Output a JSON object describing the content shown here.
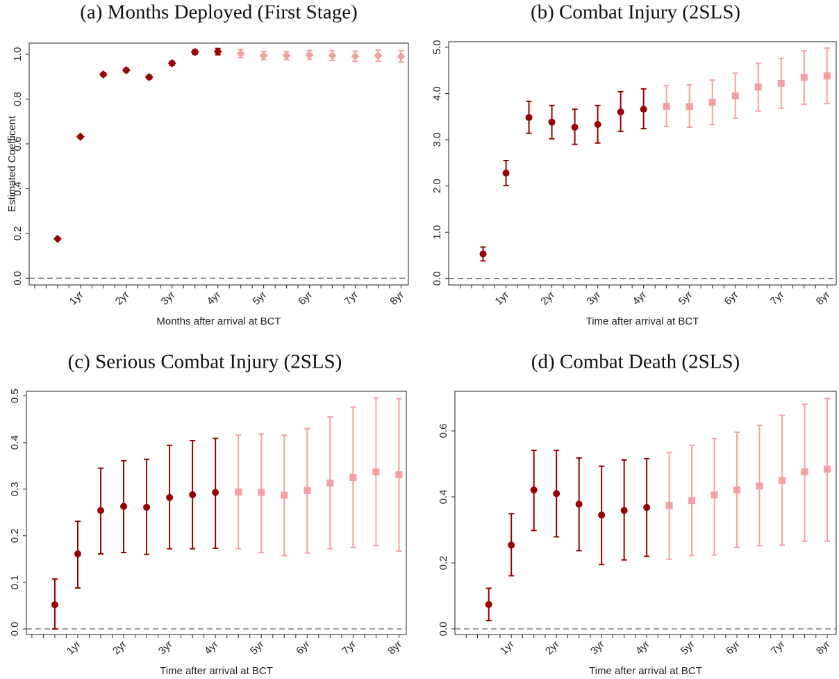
{
  "chart_data": [
    {
      "type": "errorbar",
      "title": "(a) Months Deployed (First Stage)",
      "xlabel": "Months after arrival at BCT",
      "ylabel": "Estimated Coefficent",
      "xlim": [
        -0.12,
        8.16
      ],
      "ylim": [
        -0.03,
        1.05
      ],
      "xticks": [
        {
          "value": 1,
          "label": "1yr"
        },
        {
          "value": 2,
          "label": "2yr"
        },
        {
          "value": 3,
          "label": "3yr"
        },
        {
          "value": 4,
          "label": "4yr"
        },
        {
          "value": 5,
          "label": "5yr"
        },
        {
          "value": 6,
          "label": "6yr"
        },
        {
          "value": 7,
          "label": "7yr"
        },
        {
          "value": 8,
          "label": "8yr"
        }
      ],
      "xminorticks": [
        0,
        0.25,
        0.5,
        0.75,
        1.25,
        1.5,
        1.75,
        2.25,
        2.5,
        2.75,
        3.25,
        3.5,
        3.75,
        4.25,
        4.5,
        4.75,
        5.25,
        5.5,
        5.75,
        6.25,
        6.5,
        6.75,
        7.25,
        7.5,
        7.75
      ],
      "yticks": [
        {
          "value": 0,
          "label": "0.0"
        },
        {
          "value": 0.2,
          "label": "0.2"
        },
        {
          "value": 0.4,
          "label": "0.4"
        },
        {
          "value": 0.6,
          "label": "0.6"
        },
        {
          "value": 0.8,
          "label": "0.8"
        },
        {
          "value": 1,
          "label": "1.0"
        }
      ],
      "refline": 0,
      "series": [
        {
          "color": "#990000",
          "marker": "diamond",
          "x": [
            0.5,
            1,
            1.5,
            2,
            2.5,
            3,
            3.5,
            4
          ],
          "values": [
            0.176,
            0.632,
            0.91,
            0.929,
            0.898,
            0.96,
            1.01,
            1.012
          ],
          "ci_low": [
            0.172,
            0.626,
            0.903,
            0.921,
            0.89,
            0.951,
            1.0,
            0.998
          ],
          "ci_high": [
            0.18,
            0.638,
            0.917,
            0.937,
            0.906,
            0.969,
            1.02,
            1.026
          ]
        },
        {
          "color": "#f4a0a0",
          "marker": "diamond",
          "x": [
            4.5,
            5,
            5.5,
            6,
            6.5,
            7,
            7.5,
            8
          ],
          "values": [
            1.003,
            0.994,
            0.994,
            0.997,
            0.994,
            0.991,
            0.994,
            0.991
          ],
          "ci_low": [
            0.985,
            0.976,
            0.976,
            0.977,
            0.972,
            0.968,
            0.969,
            0.966
          ],
          "ci_high": [
            1.021,
            1.012,
            1.012,
            1.017,
            1.016,
            1.014,
            1.019,
            1.016
          ]
        }
      ]
    },
    {
      "type": "errorbar",
      "title": "(b) Combat Injury (2SLS)",
      "xlabel": "Time after arrival at BCT",
      "xlim": [
        -0.25,
        8.2
      ],
      "ylim": [
        -0.14,
        5.12
      ],
      "xticks": [
        {
          "value": 1,
          "label": "1yr"
        },
        {
          "value": 2,
          "label": "2yr"
        },
        {
          "value": 3,
          "label": "3yr"
        },
        {
          "value": 4,
          "label": "4yr"
        },
        {
          "value": 5,
          "label": "5yr"
        },
        {
          "value": 6,
          "label": "6yr"
        },
        {
          "value": 7,
          "label": "7yr"
        },
        {
          "value": 8,
          "label": "8yr"
        }
      ],
      "xminorticks": [
        0,
        0.25,
        0.5,
        0.75,
        1.25,
        1.5,
        1.75,
        2.25,
        2.5,
        2.75,
        3.25,
        3.5,
        3.75,
        4.25,
        4.5,
        4.75,
        5.25,
        5.5,
        5.75,
        6.25,
        6.5,
        6.75,
        7.25,
        7.5,
        7.75
      ],
      "yticks": [
        {
          "value": 0,
          "label": "0.0"
        },
        {
          "value": 1,
          "label": "1.0"
        },
        {
          "value": 2,
          "label": "2.0"
        },
        {
          "value": 3,
          "label": "3.0"
        },
        {
          "value": 4,
          "label": "4.0"
        },
        {
          "value": 5,
          "label": "5.0"
        }
      ],
      "refline": 0,
      "series": [
        {
          "color": "#990000",
          "marker": "circle",
          "x": [
            0.5,
            1,
            1.5,
            2,
            2.5,
            3,
            3.5,
            4
          ],
          "values": [
            0.53,
            2.28,
            3.48,
            3.38,
            3.27,
            3.33,
            3.6,
            3.66
          ],
          "ci_low": [
            0.38,
            2.01,
            3.14,
            3.02,
            2.9,
            2.93,
            3.18,
            3.24
          ],
          "ci_high": [
            0.68,
            2.55,
            3.83,
            3.74,
            3.66,
            3.74,
            4.04,
            4.1
          ]
        },
        {
          "color": "#f4a0a0",
          "marker": "square",
          "x": [
            4.5,
            5,
            5.5,
            6,
            6.5,
            7,
            7.5,
            8
          ],
          "values": [
            3.72,
            3.72,
            3.81,
            3.95,
            4.14,
            4.22,
            4.35,
            4.38
          ],
          "ci_low": [
            3.29,
            3.27,
            3.33,
            3.47,
            3.62,
            3.68,
            3.77,
            3.78
          ],
          "ci_high": [
            4.17,
            4.19,
            4.29,
            4.44,
            4.65,
            4.76,
            4.92,
            4.98
          ]
        }
      ]
    },
    {
      "type": "errorbar",
      "title": "(c) Serious Combat Injury (2SLS)",
      "xlabel": "Time after arrival at BCT",
      "xlim": [
        -0.12,
        8.16
      ],
      "ylim": [
        -0.012,
        0.51
      ],
      "xticks": [
        {
          "value": 1,
          "label": "1yr"
        },
        {
          "value": 2,
          "label": "2yr"
        },
        {
          "value": 3,
          "label": "3yr"
        },
        {
          "value": 4,
          "label": "4yr"
        },
        {
          "value": 5,
          "label": "5yr"
        },
        {
          "value": 6,
          "label": "6yr"
        },
        {
          "value": 7,
          "label": "7yr"
        },
        {
          "value": 8,
          "label": "8yr"
        }
      ],
      "xminorticks": [
        0,
        0.25,
        0.5,
        0.75,
        1.25,
        1.5,
        1.75,
        2.25,
        2.5,
        2.75,
        3.25,
        3.5,
        3.75,
        4.25,
        4.5,
        4.75,
        5.25,
        5.5,
        5.75,
        6.25,
        6.5,
        6.75,
        7.25,
        7.5,
        7.75
      ],
      "yticks": [
        {
          "value": 0,
          "label": "0.0"
        },
        {
          "value": 0.1,
          "label": "0.1"
        },
        {
          "value": 0.2,
          "label": "0.2"
        },
        {
          "value": 0.3,
          "label": "0.3"
        },
        {
          "value": 0.4,
          "label": "0.4"
        },
        {
          "value": 0.5,
          "label": "0.5"
        }
      ],
      "refline": 0,
      "series": [
        {
          "color": "#990000",
          "marker": "circle",
          "x": [
            0.5,
            1,
            1.5,
            2,
            2.5,
            3,
            3.5,
            4
          ],
          "values": [
            0.052,
            0.161,
            0.254,
            0.263,
            0.261,
            0.282,
            0.288,
            0.293
          ],
          "ci_low": [
            0.0,
            0.088,
            0.161,
            0.164,
            0.16,
            0.172,
            0.172,
            0.173
          ],
          "ci_high": [
            0.107,
            0.231,
            0.345,
            0.361,
            0.364,
            0.394,
            0.404,
            0.409
          ]
        },
        {
          "color": "#f4a0a0",
          "marker": "square",
          "x": [
            4.5,
            5,
            5.5,
            6,
            6.5,
            7,
            7.5,
            8
          ],
          "values": [
            0.294,
            0.293,
            0.287,
            0.297,
            0.313,
            0.325,
            0.337,
            0.331
          ],
          "ci_low": [
            0.172,
            0.164,
            0.157,
            0.163,
            0.172,
            0.175,
            0.179,
            0.167
          ],
          "ci_high": [
            0.416,
            0.418,
            0.416,
            0.43,
            0.455,
            0.476,
            0.496,
            0.494
          ]
        }
      ]
    },
    {
      "type": "errorbar",
      "title": "(d) Combat Death (2SLS)",
      "xlabel": "Time after arrival at BCT",
      "xlim": [
        -0.25,
        8.2
      ],
      "ylim": [
        -0.017,
        0.72
      ],
      "xticks": [
        {
          "value": 1,
          "label": "1yr"
        },
        {
          "value": 2,
          "label": "2yr"
        },
        {
          "value": 3,
          "label": "3yr"
        },
        {
          "value": 4,
          "label": "4yr"
        },
        {
          "value": 5,
          "label": "5yr"
        },
        {
          "value": 6,
          "label": "6yr"
        },
        {
          "value": 7,
          "label": "7yr"
        },
        {
          "value": 8,
          "label": "8yr"
        }
      ],
      "xminorticks": [
        0,
        0.25,
        0.5,
        0.75,
        1.25,
        1.5,
        1.75,
        2.25,
        2.5,
        2.75,
        3.25,
        3.5,
        3.75,
        4.25,
        4.5,
        4.75,
        5.25,
        5.5,
        5.75,
        6.25,
        6.5,
        6.75,
        7.25,
        7.5,
        7.75
      ],
      "yticks": [
        {
          "value": 0,
          "label": "0.0"
        },
        {
          "value": 0.2,
          "label": "0.2"
        },
        {
          "value": 0.4,
          "label": "0.4"
        },
        {
          "value": 0.6,
          "label": "0.6"
        }
      ],
      "refline": 0,
      "series": [
        {
          "color": "#990000",
          "marker": "circle",
          "x": [
            0.5,
            1,
            1.5,
            2,
            2.5,
            3,
            3.5,
            4
          ],
          "values": [
            0.074,
            0.254,
            0.421,
            0.41,
            0.378,
            0.345,
            0.359,
            0.368
          ],
          "ci_low": [
            0.025,
            0.161,
            0.298,
            0.279,
            0.237,
            0.195,
            0.209,
            0.22
          ],
          "ci_high": [
            0.123,
            0.349,
            0.541,
            0.541,
            0.518,
            0.493,
            0.512,
            0.516
          ]
        },
        {
          "color": "#f4a0a0",
          "marker": "square",
          "x": [
            4.5,
            5,
            5.5,
            6,
            6.5,
            7,
            7.5,
            8
          ],
          "values": [
            0.374,
            0.389,
            0.406,
            0.421,
            0.433,
            0.45,
            0.476,
            0.484
          ],
          "ci_low": [
            0.211,
            0.222,
            0.224,
            0.247,
            0.252,
            0.254,
            0.266,
            0.266
          ],
          "ci_high": [
            0.535,
            0.556,
            0.577,
            0.596,
            0.617,
            0.647,
            0.681,
            0.698
          ]
        }
      ]
    }
  ]
}
